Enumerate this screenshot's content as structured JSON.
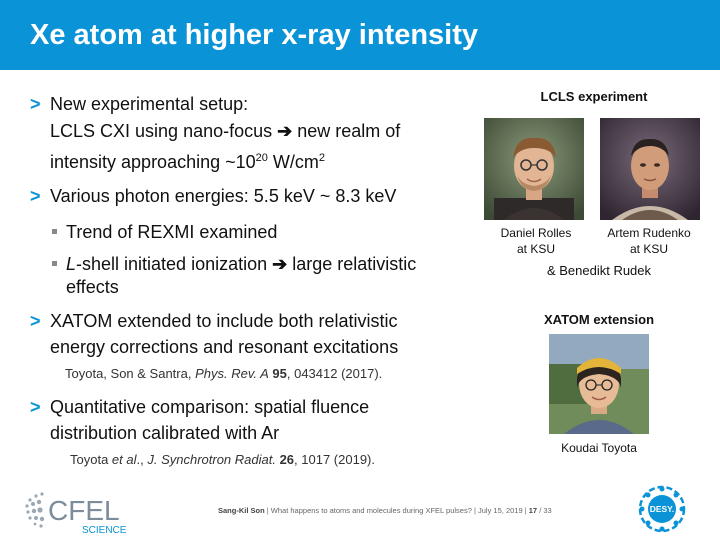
{
  "slide": {
    "title": "Xe atom at higher x-ray intensity"
  },
  "bullets": [
    {
      "mark": ">",
      "line1": "New experimental setup:",
      "line2a": "LCLS CXI using nano-focus ",
      "arrow": "➔",
      "line2b": " new realm of",
      "line3a": "intensity approaching ~10",
      "sup": "20",
      "line3b": " W/cm",
      "sup2": "2"
    },
    {
      "mark": ">",
      "line1": "Various photon energies: 5.5 keV ~ 8.3 keV"
    },
    {
      "mark": ">",
      "line1": "XATOM extended to include both relativistic",
      "line2": "energy corrections and resonant excitations"
    },
    {
      "mark": ">",
      "line1": "Quantitative comparison: spatial fluence",
      "line2": "distribution calibrated with Ar"
    }
  ],
  "subbullets": [
    {
      "text": "Trend of REXMI examined"
    },
    {
      "italic": "L",
      "text_a": "-shell initiated ionization ",
      "arrow": "➔",
      "text_b": " large relativistic",
      "line2": "effects"
    }
  ],
  "refs": {
    "ref1_a": "Toyota, Son & Santra, ",
    "ref1_journal": "Phys. Rev. A",
    "ref1_vol": " 95",
    "ref1_rest": ", 043412 (2017).",
    "ref2_a": "Toyota ",
    "ref2_etal": "et al",
    "ref2_b": "., ",
    "ref2_journal": "J. Synchrotron Radiat.",
    "ref2_vol": " 26",
    "ref2_rest": ", 1017 (2019)."
  },
  "right_panel": {
    "lcls_heading": "LCLS experiment",
    "person1_line1": "Daniel Rolles",
    "person1_line2": "at KSU",
    "person2_line1": "Artem Rudenko",
    "person2_line2": "at KSU",
    "extra": "& Benedikt Rudek",
    "xatom_heading": "XATOM extension",
    "person3": "Koudai Toyota"
  },
  "footer": {
    "author": "Sang-Kil Son",
    "sep1": "  |  ",
    "talk": "What happens to atoms and molecules during XFEL pulses?",
    "sep2": "  |  ",
    "date": "July 15, 2019",
    "sep3": "  |  ",
    "page": "17",
    "of": " / 33"
  },
  "logos": {
    "cfel": "CFEL",
    "cfel_sub": "SCIENCE",
    "desy": "DESY."
  },
  "colors": {
    "accent": "#0a93d6"
  }
}
